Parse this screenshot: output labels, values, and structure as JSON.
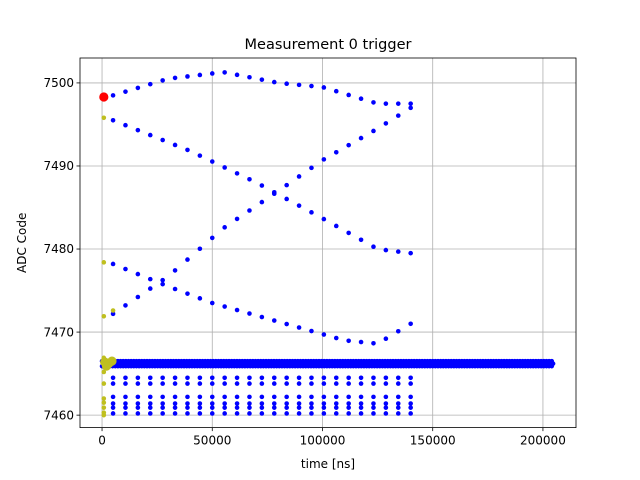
{
  "chart_data": {
    "type": "scatter",
    "title": "Measurement 0 trigger",
    "xlabel": "time [ns]",
    "ylabel": "ADC Code",
    "xlim": [
      -10000,
      215000
    ],
    "ylim": [
      7458.5,
      7503
    ],
    "xticks": [
      0,
      50000,
      100000,
      150000,
      200000
    ],
    "xtick_labels": [
      "0",
      "50000",
      "100000",
      "150000",
      "200000"
    ],
    "yticks": [
      7460,
      7470,
      7480,
      7490,
      7500
    ],
    "ytick_labels": [
      "7460",
      "7470",
      "7480",
      "7490",
      "7500"
    ],
    "grid": true,
    "colors": {
      "main": "#0000ff",
      "early": "#bfbf1f",
      "marker": "#ff0000",
      "grid": "#b0b0b0"
    },
    "series": [
      {
        "color": "#0000ff",
        "marker_radius": 2.3,
        "traces": [
          {
            "x_start": 5000,
            "x_end": 140000,
            "count": 25,
            "y_knots": [
              [
                5000,
                7498.5
              ],
              [
                30000,
                7500.5
              ],
              [
                55000,
                7501.3
              ],
              [
                80000,
                7500.0
              ],
              [
                100000,
                7499.5
              ],
              [
                125000,
                7497.5
              ],
              [
                140000,
                7497.5
              ]
            ]
          },
          {
            "x_start": 5000,
            "x_end": 140000,
            "count": 25,
            "y_knots": [
              [
                5000,
                7495.5
              ],
              [
                40000,
                7491.8
              ],
              [
                70000,
                7488.0
              ],
              [
                100000,
                7483.7
              ],
              [
                125000,
                7480.0
              ],
              [
                140000,
                7479.5
              ]
            ]
          },
          {
            "x_start": 5000,
            "x_end": 140000,
            "count": 25,
            "y_knots": [
              [
                5000,
                7478.2
              ],
              [
                30000,
                7475.5
              ],
              [
                50000,
                7473.5
              ],
              [
                70000,
                7472.0
              ],
              [
                90000,
                7470.5
              ],
              [
                110000,
                7469.0
              ],
              [
                125000,
                7468.6
              ],
              [
                140000,
                7471.0
              ]
            ]
          },
          {
            "x_start": 5000,
            "x_end": 140000,
            "count": 25,
            "y_knots": [
              [
                5000,
                7472.2
              ],
              [
                30000,
                7476.7
              ],
              [
                55000,
                7482.5
              ],
              [
                80000,
                7487.0
              ],
              [
                100000,
                7490.7
              ],
              [
                125000,
                7494.5
              ],
              [
                140000,
                7497.0
              ]
            ]
          },
          {
            "x_start": 5000,
            "x_end": 140000,
            "count": 25,
            "y_const": 7464.5
          },
          {
            "x_start": 5000,
            "x_end": 140000,
            "count": 25,
            "y_const": 7463.8
          },
          {
            "x_start": 5000,
            "x_end": 140000,
            "count": 25,
            "y_const": 7462.2
          },
          {
            "x_start": 5000,
            "x_end": 140000,
            "count": 25,
            "y_const": 7461.4
          },
          {
            "x_start": 5000,
            "x_end": 140000,
            "count": 25,
            "y_const": 7460.9
          },
          {
            "x_start": 5000,
            "x_end": 140000,
            "count": 25,
            "y_const": 7460.2
          }
        ],
        "dense_band": {
          "x_start": 0,
          "x_end": 205000,
          "step": 1200,
          "y_levels": [
            7465.9,
            7466.2,
            7466.5
          ]
        }
      },
      {
        "color": "#bfbf1f",
        "marker_radius": 2.3,
        "points": [
          [
            800,
            7495.8
          ],
          [
            800,
            7478.4
          ],
          [
            800,
            7471.9
          ],
          [
            5000,
            7472.6
          ],
          [
            800,
            7466.9
          ],
          [
            800,
            7465.2
          ],
          [
            800,
            7463.8
          ],
          [
            800,
            7462.0
          ],
          [
            800,
            7461.5
          ],
          [
            800,
            7460.9
          ],
          [
            800,
            7460.3
          ],
          [
            800,
            7460.0
          ]
        ]
      },
      {
        "color": "#bfbf1f",
        "marker_radius": 4.6,
        "points": [
          [
            1200,
            7466.4
          ],
          [
            3000,
            7466.2
          ],
          [
            4500,
            7466.5
          ],
          [
            2000,
            7465.9
          ]
        ]
      },
      {
        "color": "#ff0000",
        "marker_radius": 4.6,
        "points": [
          [
            800,
            7498.3
          ]
        ]
      }
    ]
  }
}
